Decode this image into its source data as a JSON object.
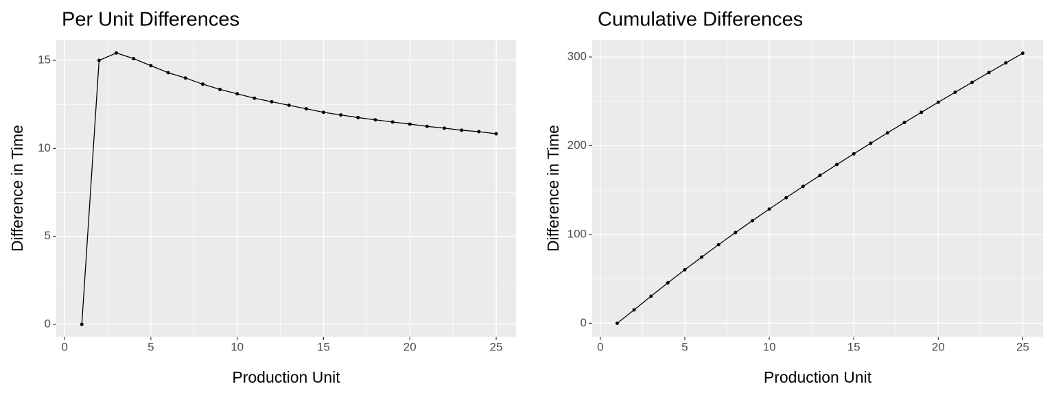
{
  "chart_data": [
    {
      "type": "line",
      "title": "Per Unit Differences",
      "x_label": "Production Unit",
      "y_label": "Difference in Time",
      "x": [
        1,
        2,
        3,
        4,
        5,
        6,
        7,
        8,
        9,
        10,
        11,
        12,
        13,
        14,
        15,
        16,
        17,
        18,
        19,
        20,
        21,
        22,
        23,
        24,
        25
      ],
      "values": [
        0,
        15.0,
        15.42,
        15.1,
        14.7,
        14.3,
        14.0,
        13.65,
        13.35,
        13.1,
        12.85,
        12.65,
        12.45,
        12.25,
        12.05,
        11.9,
        11.75,
        11.62,
        11.5,
        11.38,
        11.25,
        11.15,
        11.03,
        10.95,
        10.83
      ],
      "color": "#000000",
      "xlim": [
        -0.48,
        26.15
      ],
      "ylim": [
        -0.7,
        16.17
      ],
      "xticks": [
        0,
        5,
        10,
        15,
        20,
        25
      ],
      "yticks": [
        0,
        5,
        10,
        15
      ],
      "grid": true
    },
    {
      "type": "line",
      "title": "Cumulative Differences",
      "x_label": "Production Unit",
      "y_label": "Difference in Time",
      "x": [
        1,
        2,
        3,
        4,
        5,
        6,
        7,
        8,
        9,
        10,
        11,
        12,
        13,
        14,
        15,
        16,
        17,
        18,
        19,
        20,
        21,
        22,
        23,
        24,
        25
      ],
      "values": [
        0,
        15,
        30.42,
        45.52,
        60.22,
        74.52,
        88.52,
        102.17,
        115.52,
        128.62,
        141.47,
        154.12,
        166.57,
        178.82,
        190.87,
        202.77,
        214.52,
        226.14,
        237.64,
        249.02,
        260.27,
        271.42,
        282.45,
        293.4,
        304.23
      ],
      "color": "#000000",
      "xlim": [
        -0.48,
        26.2
      ],
      "ylim": [
        -15.2,
        319.4
      ],
      "xticks": [
        0,
        5,
        10,
        15,
        20,
        25
      ],
      "yticks": [
        0,
        100,
        200,
        300
      ],
      "grid": true
    }
  ]
}
